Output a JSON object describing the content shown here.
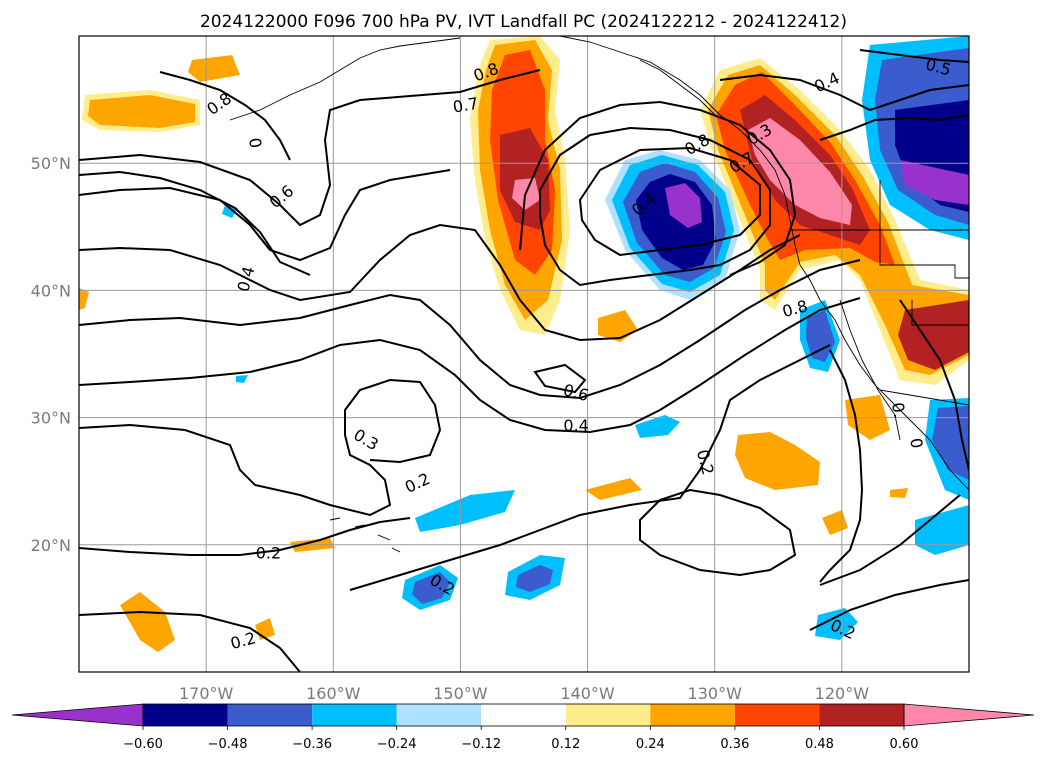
{
  "chart_data": {
    "type": "contour-map",
    "title": "2024122000 F096 700 hPa PV, IVT Landfall PC (2024122212 - 2024122412)",
    "xlim": [
      -180,
      -110
    ],
    "ylim": [
      10,
      60
    ],
    "grid": true,
    "x_ticks": [
      {
        "value": -170,
        "label": "170°W"
      },
      {
        "value": -160,
        "label": "160°W"
      },
      {
        "value": -150,
        "label": "150°W"
      },
      {
        "value": -140,
        "label": "140°W"
      },
      {
        "value": -130,
        "label": "130°W"
      },
      {
        "value": -120,
        "label": "120°W"
      }
    ],
    "y_ticks": [
      {
        "value": 20,
        "label": "20°N"
      },
      {
        "value": 30,
        "label": "30°N"
      },
      {
        "value": 40,
        "label": "40°N"
      },
      {
        "value": 50,
        "label": "50°N"
      }
    ],
    "colorbar": {
      "extend": "both",
      "ticks": [
        "−0.60",
        "−0.48",
        "−0.36",
        "−0.24",
        "−0.12",
        "0.12",
        "0.24",
        "0.36",
        "0.48",
        "0.60"
      ],
      "levels": [
        -0.6,
        -0.48,
        -0.36,
        -0.24,
        -0.12,
        0.12,
        0.24,
        0.36,
        0.48,
        0.6
      ],
      "colors": [
        "#9932cc",
        "#00008b",
        "#3a5ccc",
        "#00bfff",
        "#b0e2ff",
        "#ffffff",
        "#ffec8b",
        "#ffa500",
        "#ff4500",
        "#b22222",
        "#ff88aa"
      ]
    },
    "contour_labels": [
      {
        "lon": -148,
        "lat": 57.2,
        "label": "0.8",
        "rot": 20
      },
      {
        "lon": -149.6,
        "lat": 54.6,
        "label": "0.7",
        "rot": 10
      },
      {
        "lon": -169,
        "lat": 54.7,
        "label": "0.8",
        "rot": 35
      },
      {
        "lon": -166.1,
        "lat": 51.6,
        "label": "0",
        "rot": -80
      },
      {
        "lon": -164.1,
        "lat": 47.4,
        "label": "0.6",
        "rot": 40
      },
      {
        "lon": -166.9,
        "lat": 40.9,
        "label": "0.4",
        "rot": 75
      },
      {
        "lon": -121.2,
        "lat": 56.4,
        "label": "0.4",
        "rot": 25
      },
      {
        "lon": -112.4,
        "lat": 57.6,
        "label": "0.5",
        "rot": -15
      },
      {
        "lon": -126.5,
        "lat": 52.3,
        "label": "0.3",
        "rot": 30
      },
      {
        "lon": -131.4,
        "lat": 51.5,
        "label": "0.8",
        "rot": 30
      },
      {
        "lon": -127.9,
        "lat": 50.1,
        "label": "0.7",
        "rot": 30
      },
      {
        "lon": -135.6,
        "lat": 46.8,
        "label": "0.4",
        "rot": 40
      },
      {
        "lon": -123.7,
        "lat": 38.6,
        "label": "0.8",
        "rot": 15
      },
      {
        "lon": -140.9,
        "lat": 32.0,
        "label": "0.6",
        "rot": -15
      },
      {
        "lon": -140.9,
        "lat": 29.4,
        "label": "0.4",
        "rot": 0
      },
      {
        "lon": -157.4,
        "lat": 28.3,
        "label": "0.3",
        "rot": -30
      },
      {
        "lon": -153.4,
        "lat": 24.9,
        "label": "0.2",
        "rot": 25
      },
      {
        "lon": -130.7,
        "lat": 26.5,
        "label": "0.2",
        "rot": -75
      },
      {
        "lon": -165.1,
        "lat": 19.4,
        "label": "0.2",
        "rot": 0
      },
      {
        "lon": -151.4,
        "lat": 16.9,
        "label": "0.2",
        "rot": -30
      },
      {
        "lon": -167.1,
        "lat": 12.5,
        "label": "0.2",
        "rot": 15
      },
      {
        "lon": -119.9,
        "lat": 13.4,
        "label": "0.2",
        "rot": -25
      },
      {
        "lon": -114.1,
        "lat": 28.0,
        "label": "0",
        "rot": -80
      },
      {
        "lon": -115.5,
        "lat": 30.6,
        "label": "0.",
        "rot": -80
      }
    ]
  }
}
